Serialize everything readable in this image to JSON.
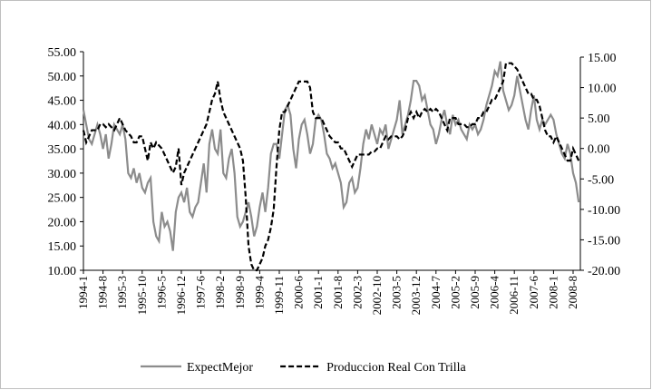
{
  "chart_data": {
    "type": "line",
    "categories": [
      "1994-1",
      null,
      null,
      null,
      null,
      null,
      null,
      "1994-8",
      null,
      null,
      null,
      null,
      null,
      null,
      "1995-3",
      null,
      null,
      null,
      null,
      null,
      null,
      "1995-10",
      null,
      null,
      null,
      null,
      null,
      null,
      "1996-5",
      null,
      null,
      null,
      null,
      null,
      null,
      "1996-12",
      null,
      null,
      null,
      null,
      null,
      null,
      "1997-6",
      null,
      null,
      null,
      null,
      null,
      null,
      "1998-2",
      null,
      null,
      null,
      null,
      null,
      null,
      "1998-9",
      null,
      null,
      null,
      null,
      null,
      null,
      "1999-4",
      null,
      null,
      null,
      null,
      null,
      null,
      "1999-11",
      null,
      null,
      null,
      null,
      null,
      null,
      "2000-6",
      null,
      null,
      null,
      null,
      null,
      null,
      "2001-1",
      null,
      null,
      null,
      null,
      null,
      null,
      "2001-8",
      null,
      null,
      null,
      null,
      null,
      null,
      "2002-3",
      null,
      null,
      null,
      null,
      null,
      null,
      "2002-10",
      null,
      null,
      null,
      null,
      null,
      null,
      "2003-5",
      null,
      null,
      null,
      null,
      null,
      null,
      "2003-12",
      null,
      null,
      null,
      null,
      null,
      null,
      "2004-7",
      null,
      null,
      null,
      null,
      null,
      null,
      "2005-2",
      null,
      null,
      null,
      null,
      null,
      null,
      "2005-9",
      null,
      null,
      null,
      null,
      null,
      null,
      "2006-4",
      null,
      null,
      null,
      null,
      null,
      null,
      "2006-11",
      null,
      null,
      null,
      null,
      null,
      null,
      "2007-6",
      null,
      null,
      null,
      null,
      null,
      null,
      "2008-1",
      null,
      null,
      null,
      null,
      null,
      null,
      "2008-8",
      null,
      null
    ],
    "series": [
      {
        "name": "ExpectMejor",
        "color": "#8c8c8c",
        "dash": false,
        "axis": "y",
        "values": [
          43,
          40,
          37,
          36,
          38,
          40,
          38,
          35,
          38,
          33,
          36,
          40,
          39,
          38,
          40,
          37,
          30,
          29,
          31,
          28,
          30,
          27,
          26,
          28,
          29,
          20,
          17,
          16,
          22,
          19,
          20,
          18,
          14,
          22,
          25,
          26,
          24,
          27,
          22,
          21,
          23,
          24,
          28,
          32,
          26,
          36,
          39,
          35,
          34,
          39,
          30,
          29,
          33,
          35,
          30,
          21,
          19,
          20,
          22,
          24,
          21,
          17,
          19,
          23,
          26,
          22,
          27,
          34,
          36,
          36,
          33,
          38,
          43,
          44,
          42,
          35,
          31,
          37,
          40,
          41,
          38,
          34,
          36,
          41,
          42,
          41,
          38,
          34,
          33,
          31,
          32,
          30,
          28,
          23,
          24,
          28,
          29,
          26,
          27,
          31,
          36,
          39,
          37,
          40,
          38,
          36,
          39,
          38,
          40,
          35,
          37,
          39,
          41,
          45,
          38,
          40,
          42,
          45,
          49,
          49,
          48,
          45,
          46,
          43,
          40,
          39,
          36,
          38,
          41,
          43,
          40,
          38,
          42,
          40,
          41,
          39,
          38,
          37,
          40,
          39,
          40,
          38,
          39,
          41,
          44,
          46,
          48,
          51,
          50,
          53,
          47,
          45,
          43,
          44,
          46,
          50,
          47,
          44,
          41,
          39,
          43,
          46,
          41,
          39,
          41,
          40,
          41,
          42,
          41,
          38,
          36,
          34,
          33,
          36,
          34,
          30,
          28,
          24
        ]
      },
      {
        "name": "Produccion Real Con Trilla",
        "color": "#000000",
        "dash": true,
        "axis": "y2",
        "values": [
          3,
          1,
          2,
          3,
          3,
          3,
          4,
          4,
          3.5,
          4,
          3.5,
          3,
          4,
          5,
          4,
          3,
          2.5,
          2,
          1,
          1,
          2,
          2,
          0,
          -2,
          1,
          0,
          1,
          0.5,
          0,
          -1,
          -2,
          -3,
          -4,
          -3,
          0,
          -6,
          -4,
          -3,
          -2,
          -1,
          0,
          1,
          2,
          3,
          4,
          6,
          8,
          9,
          11,
          8,
          6,
          5,
          4,
          3,
          2,
          1,
          0,
          -2,
          -8,
          -16,
          -19,
          -20,
          -20,
          -19,
          -18,
          -16,
          -15,
          -13,
          -10,
          -3,
          3,
          6,
          6,
          7,
          8,
          9,
          10,
          11,
          11,
          11,
          11,
          10,
          6,
          5,
          5,
          5,
          4,
          3,
          2,
          1.5,
          1,
          1,
          0,
          0,
          -1,
          -2,
          -3,
          -2,
          -1,
          -1,
          -1,
          -1,
          -1,
          -0.5,
          -0.5,
          0,
          0,
          1,
          2,
          1.5,
          2,
          2,
          2,
          1.5,
          2,
          3,
          5,
          6,
          5,
          6,
          5,
          6,
          6.5,
          6,
          6.5,
          6,
          6.5,
          6,
          5,
          4,
          3,
          5,
          5,
          5,
          4,
          4,
          4,
          3.5,
          3.5,
          4,
          4,
          5,
          5,
          6,
          6,
          7,
          8,
          8,
          9,
          10,
          11,
          14,
          14,
          14,
          13.5,
          13,
          12,
          11,
          10,
          9,
          9,
          8,
          8,
          7,
          5,
          3,
          2,
          2,
          1,
          2,
          1,
          0,
          -1,
          -2,
          -2,
          0,
          -1,
          -2
        ]
      }
    ],
    "ylim": [
      10,
      55
    ],
    "yticks": [
      {
        "value": 10,
        "label": "10.00"
      },
      {
        "value": 15,
        "label": "15.00"
      },
      {
        "value": 20,
        "label": "20.00"
      },
      {
        "value": 25,
        "label": "25.00"
      },
      {
        "value": 30,
        "label": "30.00"
      },
      {
        "value": 35,
        "label": "35.00"
      },
      {
        "value": 40,
        "label": "40.00"
      },
      {
        "value": 45,
        "label": "45.00"
      },
      {
        "value": 50,
        "label": "50.00"
      },
      {
        "value": 55,
        "label": "55.00"
      }
    ],
    "y2lim": [
      -20,
      15
    ],
    "y2ticks": [
      {
        "value": -20,
        "label": "-20.00"
      },
      {
        "value": -15,
        "label": "-15.00"
      },
      {
        "value": -10,
        "label": "-10.00"
      },
      {
        "value": -5,
        "label": "-5.00"
      },
      {
        "value": 0,
        "label": "0.00"
      },
      {
        "value": 5,
        "label": "5.00"
      },
      {
        "value": 10,
        "label": "10.00"
      },
      {
        "value": 15,
        "label": "15.00"
      }
    ],
    "legend": "bottom"
  }
}
